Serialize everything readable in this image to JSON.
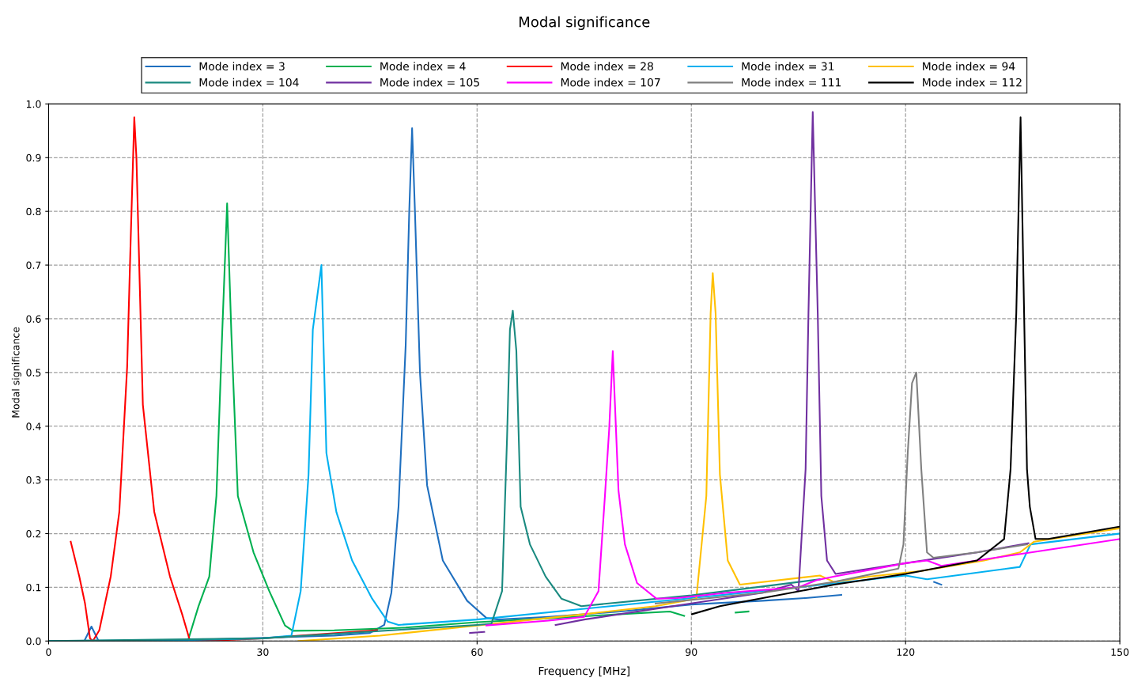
{
  "chart_data": {
    "type": "line",
    "title": "Modal significance",
    "xlabel": "Frequency [MHz]",
    "ylabel": "Modal significance",
    "xlim": [
      0,
      150
    ],
    "xticks": [
      0,
      30,
      60,
      90,
      120,
      150
    ],
    "ylim": [
      0,
      1
    ],
    "yticks": [
      {
        "value": 0,
        "label": "0.0"
      },
      {
        "value": 0.1,
        "label": "0.1"
      },
      {
        "value": 0.2,
        "label": "0.2"
      },
      {
        "value": 0.3,
        "label": "0.3"
      },
      {
        "value": 0.4,
        "label": "0.4"
      },
      {
        "value": 0.5,
        "label": "0.5"
      },
      {
        "value": 0.6,
        "label": "0.6"
      },
      {
        "value": 0.7,
        "label": "0.7"
      },
      {
        "value": 0.8,
        "label": "0.8"
      },
      {
        "value": 0.9,
        "label": "0.9"
      },
      {
        "value": 1.0,
        "label": "1.0"
      }
    ],
    "grid": true,
    "legend": "top",
    "line_style": "solid",
    "marker": "none",
    "series": [
      {
        "name": "Mode index = 3",
        "color": "#1f6fbf",
        "x": [
          0,
          5,
          6,
          7,
          8,
          20,
          30,
          40,
          45,
          47,
          48,
          49,
          50,
          50.5,
          50.9,
          51.3,
          52,
          53,
          55.2,
          58.6,
          61.3,
          63,
          70,
          80,
          90,
          100,
          106,
          111,
          115,
          124,
          125
        ],
        "values": [
          0,
          0,
          0.027,
          0,
          0,
          0.002,
          0.006,
          0.01,
          0.015,
          0.03,
          0.09,
          0.25,
          0.55,
          0.8,
          0.955,
          0.8,
          0.5,
          0.29,
          0.15,
          0.075,
          0.043,
          0.04,
          0.045,
          0.055,
          0.068,
          0.075,
          0.08,
          0.086,
          null,
          0.11,
          0.105
        ]
      },
      {
        "name": "Mode index = 4",
        "color": "#00b050",
        "x": [
          0,
          19.5,
          21,
          22.5,
          23.5,
          24.3,
          25,
          25.6,
          26.5,
          28.7,
          30.9,
          33.1,
          34.2,
          40,
          50,
          60,
          70,
          80,
          87,
          89,
          93,
          96.2,
          98
        ],
        "values": [
          0,
          0,
          0.065,
          0.12,
          0.27,
          0.57,
          0.815,
          0.57,
          0.27,
          0.165,
          0.093,
          0.029,
          0.019,
          0.02,
          0.025,
          0.035,
          0.042,
          0.05,
          0.055,
          0.047,
          null,
          0.053,
          0.055
        ]
      },
      {
        "name": "Mode index = 28",
        "color": "#ff0000",
        "x": [
          3.1,
          4.3,
          5.1,
          5.8,
          6.2,
          7.1,
          8.7,
          9.9,
          11,
          11.5,
          12,
          12.3,
          13.2,
          14.8,
          17,
          18.7,
          19.8,
          25,
          30,
          46
        ],
        "values": [
          0.185,
          0.12,
          0.07,
          0.005,
          0,
          0.02,
          0.12,
          0.24,
          0.51,
          0.75,
          0.975,
          0.9,
          0.44,
          0.24,
          0.12,
          0.05,
          0,
          0.002,
          0.005,
          0.02
        ]
      },
      {
        "name": "Mode index = 31",
        "color": "#00b0f0",
        "x": [
          0,
          20,
          30,
          34,
          35.3,
          36.4,
          37,
          38.2,
          38.9,
          40.3,
          42.5,
          45.3,
          47.5,
          49,
          60,
          75,
          90,
          105,
          120,
          123,
          136,
          137.5,
          150
        ],
        "values": [
          0,
          0.002,
          0.005,
          0.01,
          0.093,
          0.31,
          0.58,
          0.7,
          0.35,
          0.24,
          0.15,
          0.079,
          0.036,
          0.03,
          0.04,
          0.06,
          0.08,
          0.1,
          0.122,
          0.115,
          0.138,
          0.18,
          0.2
        ]
      },
      {
        "name": "Mode index = 94",
        "color": "#ffc000",
        "x": [
          35,
          46.4,
          75,
          85,
          90.7,
          92.1,
          92.7,
          93,
          93.4,
          94,
          95.1,
          96.8,
          108,
          110,
          115,
          122,
          131,
          136,
          138,
          150
        ],
        "values": [
          0,
          0.01,
          0.05,
          0.065,
          0.079,
          0.27,
          0.61,
          0.685,
          0.61,
          0.31,
          0.15,
          0.105,
          0.122,
          0.11,
          0.12,
          0.13,
          0.15,
          0.165,
          0.185,
          0.21
        ]
      },
      {
        "name": "Mode index = 104",
        "color": "#1a8a80",
        "x": [
          0,
          30,
          48,
          60,
          62,
          63.5,
          64.2,
          64.6,
          65,
          65.5,
          66.1,
          67.4,
          69.6,
          71.8,
          74.6,
          90,
          108
        ],
        "values": [
          0,
          0.005,
          0.02,
          0.03,
          0.032,
          0.093,
          0.38,
          0.58,
          0.615,
          0.54,
          0.25,
          0.18,
          0.12,
          0.079,
          0.065,
          0.085,
          0.115
        ]
      },
      {
        "name": "Mode index = 105",
        "color": "#7030a0",
        "x": [
          59,
          61,
          65,
          71,
          75,
          90,
          100,
          104,
          105,
          106,
          106.4,
          107,
          107.7,
          108.2,
          109,
          110.2,
          120,
          130,
          137.2
        ],
        "values": [
          0.015,
          0.017,
          null,
          0.03,
          0.04,
          0.07,
          0.09,
          0.105,
          0.093,
          0.32,
          0.61,
          0.985,
          0.61,
          0.27,
          0.15,
          0.125,
          0.145,
          0.165,
          0.182
        ]
      },
      {
        "name": "Mode index = 107",
        "color": "#ff00ff",
        "x": [
          61.3,
          70,
          75,
          77,
          77.9,
          78.5,
          79,
          79.8,
          80.7,
          82.4,
          85.1,
          88,
          95,
          105,
          107.5,
          110,
          120,
          123,
          125,
          135,
          150
        ],
        "values": [
          0.029,
          0.038,
          0.045,
          0.093,
          0.27,
          0.395,
          0.54,
          0.28,
          0.18,
          0.108,
          0.079,
          0.08,
          0.09,
          0.1,
          0.113,
          0.12,
          0.145,
          0.15,
          0.14,
          0.16,
          0.19
        ]
      },
      {
        "name": "Mode index = 111",
        "color": "#808080",
        "x": [
          85,
          100,
          110,
          119,
          119.7,
          120.3,
          120.9,
          121.5,
          121.7,
          122.2,
          123,
          123.9,
          130,
          137
        ],
        "values": [
          0.07,
          0.09,
          0.11,
          0.135,
          0.18,
          0.35,
          0.48,
          0.5,
          0.45,
          0.32,
          0.165,
          0.155,
          0.165,
          0.18
        ]
      },
      {
        "name": "Mode index = 112",
        "color": "#000000",
        "x": [
          90.1,
          94,
          100,
          110,
          120,
          130,
          133.8,
          134.7,
          135.5,
          136.1,
          136.5,
          137,
          137.4,
          138.2,
          140,
          150
        ],
        "values": [
          0.05,
          0.065,
          0.08,
          0.105,
          0.125,
          0.15,
          0.19,
          0.32,
          0.61,
          0.975,
          0.68,
          0.32,
          0.25,
          0.19,
          0.19,
          0.213
        ]
      }
    ]
  }
}
